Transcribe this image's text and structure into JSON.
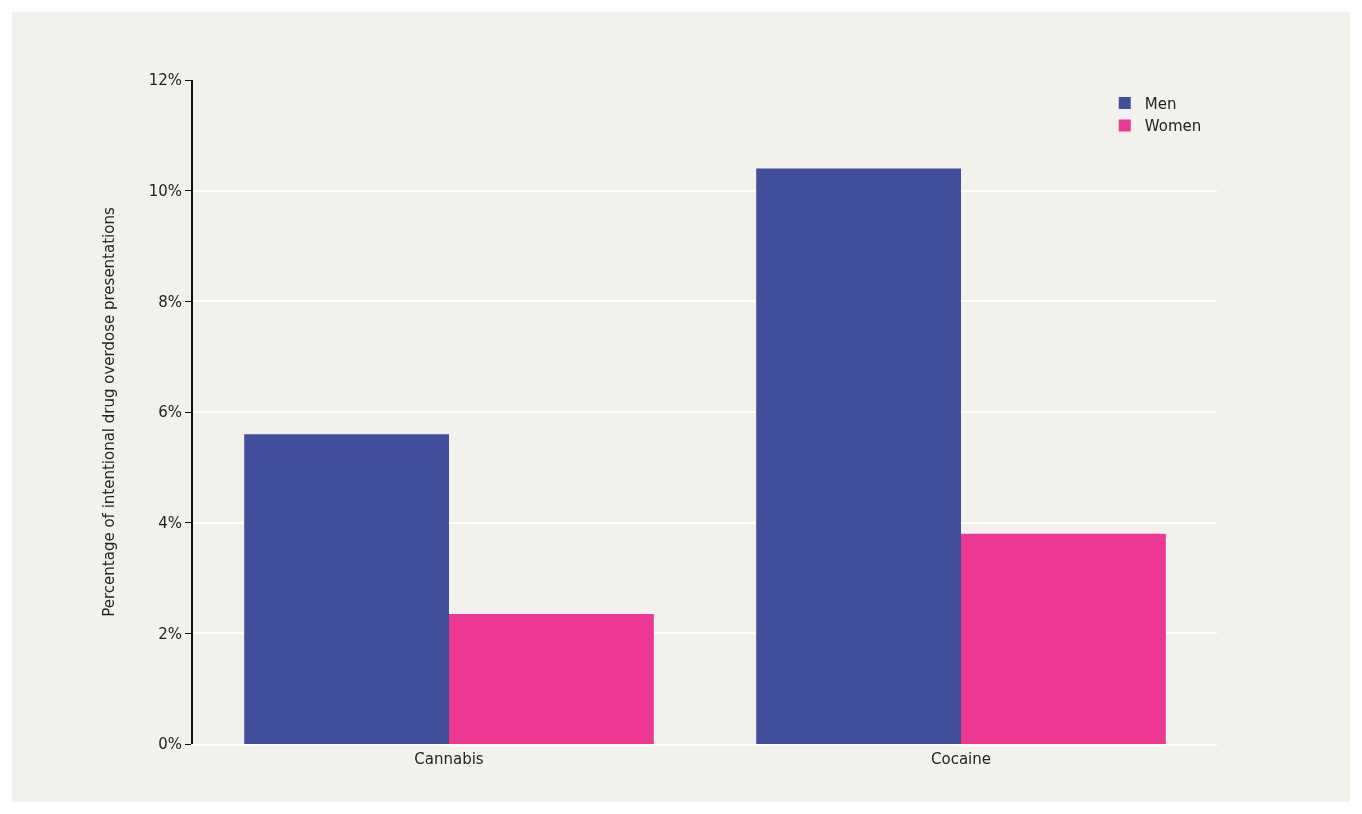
{
  "chart_data": {
    "type": "bar",
    "ylabel": "Percentage of intentional drug overdose presentations",
    "categories": [
      "Cannabis",
      "Cocaine"
    ],
    "series": [
      {
        "name": "Men",
        "color": "#414e9c",
        "values": [
          5.6,
          10.4
        ]
      },
      {
        "name": "Women",
        "color": "#ec3892",
        "values": [
          2.35,
          3.8
        ]
      }
    ],
    "ylim": [
      0,
      12
    ],
    "yticks": [
      {
        "value": 0,
        "label": "0%"
      },
      {
        "value": 2,
        "label": "2%"
      },
      {
        "value": 4,
        "label": "4%"
      },
      {
        "value": 6,
        "label": "6%"
      },
      {
        "value": 8,
        "label": "8%"
      },
      {
        "value": 10,
        "label": "10%"
      },
      {
        "value": 12,
        "label": "12%"
      }
    ],
    "grid": "y",
    "legend": "top right"
  }
}
